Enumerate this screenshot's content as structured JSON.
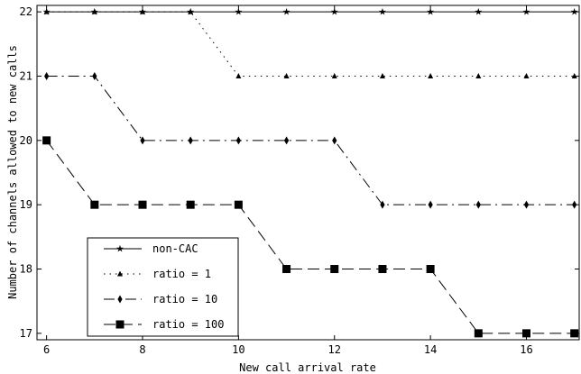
{
  "chart_data": {
    "type": "line",
    "xlabel": "New call arrival rate",
    "ylabel": "Number of channels allowed to new calls",
    "xlim": [
      5.8,
      17.1
    ],
    "ylim": [
      16.9,
      22.1
    ],
    "xticks": [
      6,
      8,
      10,
      12,
      14,
      16
    ],
    "yticks": [
      17,
      18,
      19,
      20,
      21,
      22
    ],
    "grid": false,
    "legend_position": "bottom-left",
    "x": [
      6,
      7,
      8,
      9,
      10,
      11,
      12,
      13,
      14,
      15,
      16,
      17
    ],
    "series": [
      {
        "name": "non-CAC",
        "marker": "star",
        "dash": "solid",
        "values": [
          22,
          22,
          22,
          22,
          22,
          22,
          22,
          22,
          22,
          22,
          22,
          22
        ]
      },
      {
        "name": "ratio = 1",
        "marker": "triangle",
        "dash": "dotted",
        "values": [
          22,
          22,
          22,
          22,
          21,
          21,
          21,
          21,
          21,
          21,
          21,
          21
        ]
      },
      {
        "name": "ratio = 10",
        "marker": "diamond",
        "dash": "dashdot",
        "values": [
          21,
          21,
          20,
          20,
          20,
          20,
          20,
          19,
          19,
          19,
          19,
          19
        ]
      },
      {
        "name": "ratio = 100",
        "marker": "square",
        "dash": "dashed",
        "values": [
          20,
          19,
          19,
          19,
          19,
          18,
          18,
          18,
          18,
          17,
          17,
          17
        ]
      }
    ]
  }
}
